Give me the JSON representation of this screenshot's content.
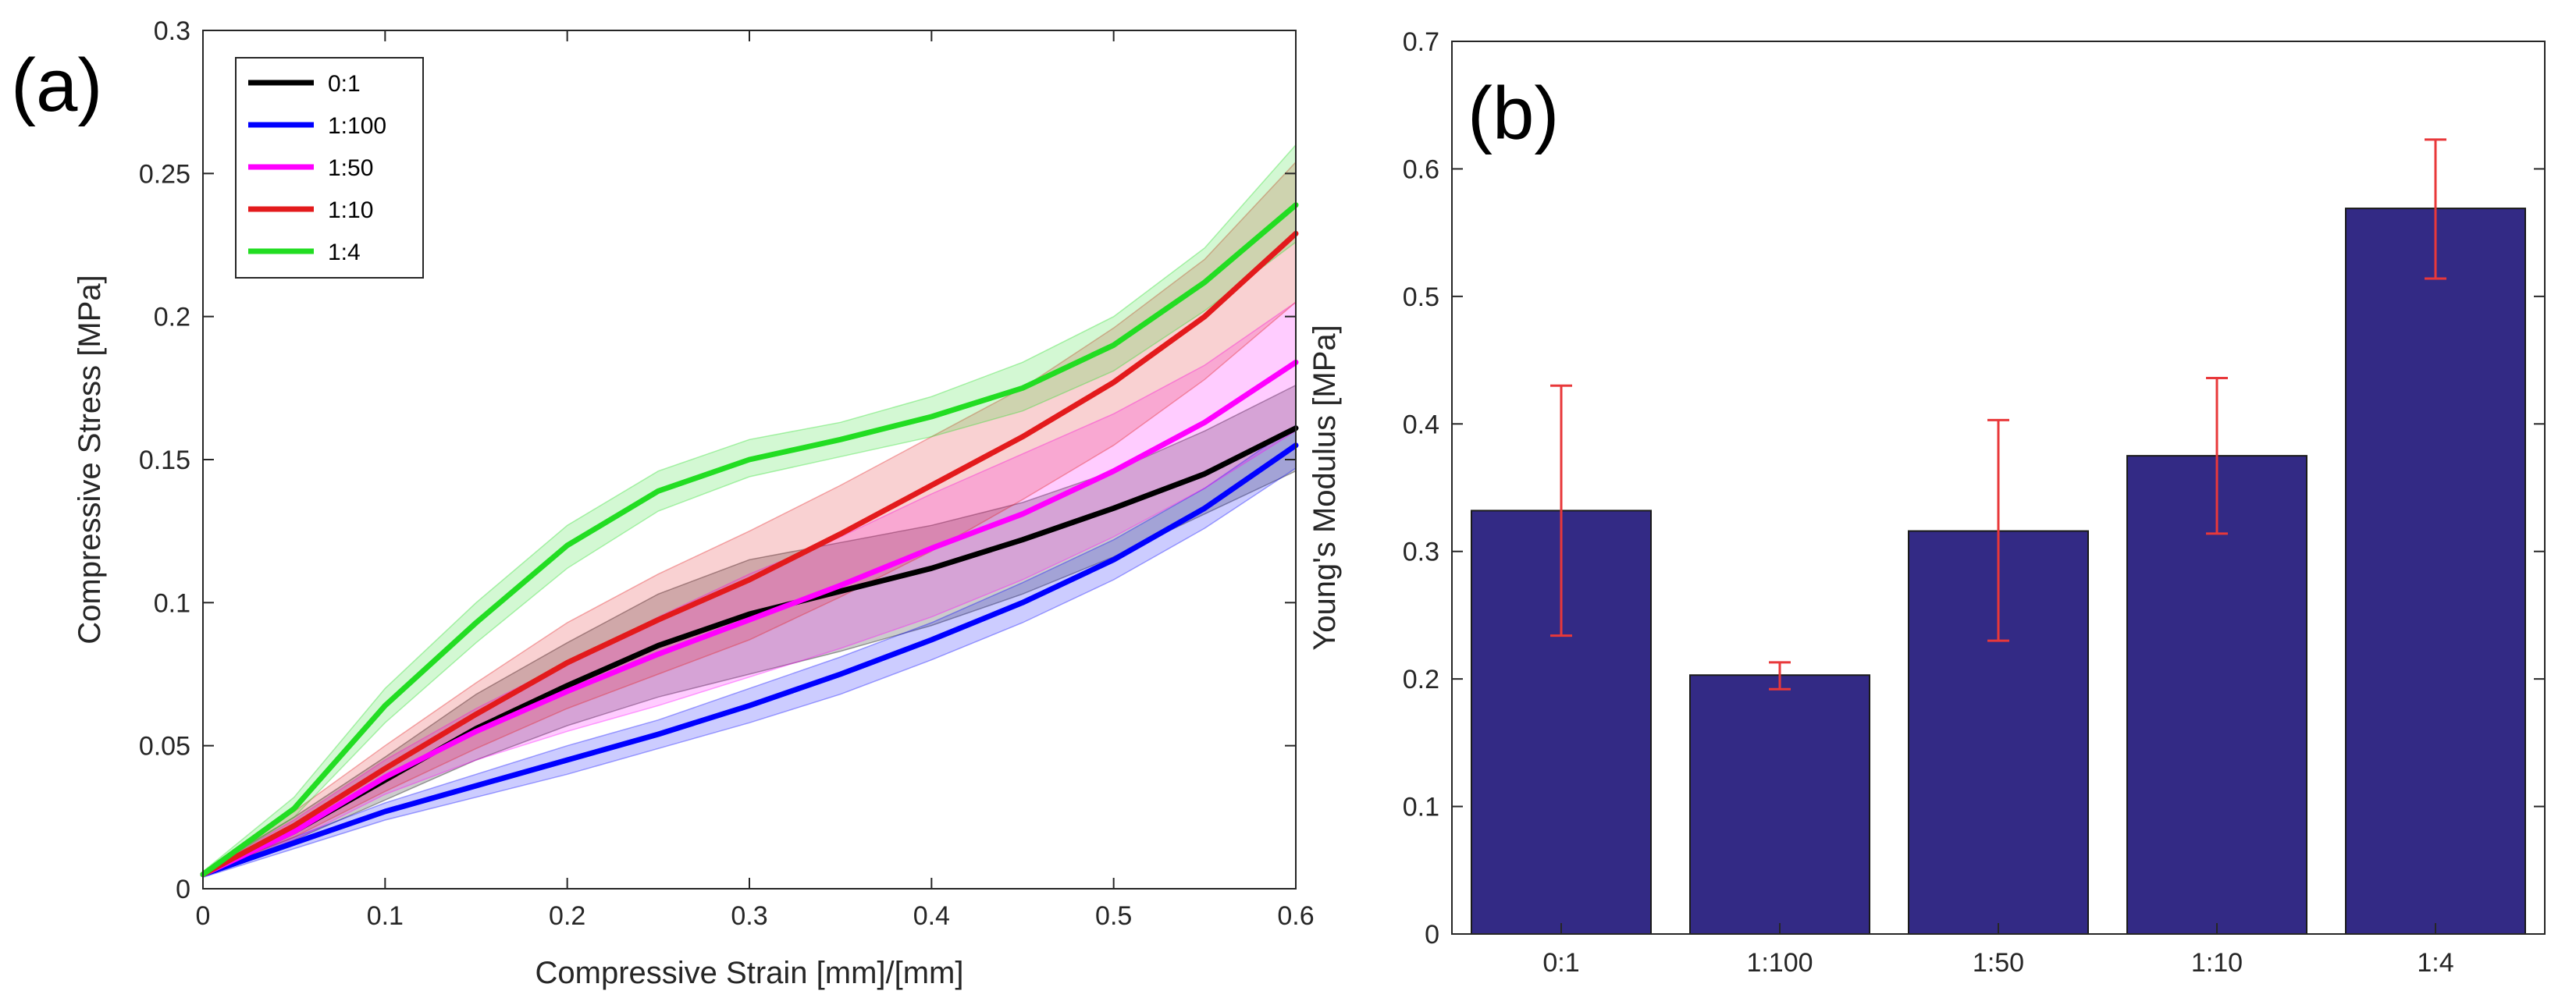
{
  "figure": {
    "panel_a": "(a)",
    "panel_b": "(b)"
  },
  "chart_data": [
    {
      "type": "line",
      "panel": "(a)",
      "title": "",
      "xlabel": "Compressive Strain [mm]/[mm]",
      "ylabel": "Compressive  Stress [MPa]",
      "xlim": [
        0,
        0.6
      ],
      "ylim": [
        0,
        0.3
      ],
      "xticks": [
        "0",
        "0.1",
        "0.2",
        "0.3",
        "0.4",
        "0.5",
        "0.6"
      ],
      "yticks": [
        "0",
        "0.05",
        "0.1",
        "0.15",
        "0.2",
        "0.25",
        "0.3"
      ],
      "legend_position": "top-left",
      "grid": false,
      "x": [
        0,
        0.05,
        0.1,
        0.15,
        0.2,
        0.25,
        0.3,
        0.35,
        0.4,
        0.45,
        0.5,
        0.55,
        0.6
      ],
      "series": [
        {
          "name": "0:1",
          "color": "#000000",
          "values": [
            0.005,
            0.02,
            0.038,
            0.056,
            0.071,
            0.085,
            0.096,
            0.104,
            0.112,
            0.122,
            0.133,
            0.145,
            0.161
          ],
          "band_lower": [
            0.005,
            0.017,
            0.031,
            0.045,
            0.057,
            0.067,
            0.075,
            0.083,
            0.092,
            0.103,
            0.116,
            0.131,
            0.146
          ],
          "band_upper": [
            0.006,
            0.025,
            0.046,
            0.068,
            0.086,
            0.103,
            0.115,
            0.121,
            0.127,
            0.135,
            0.146,
            0.16,
            0.176
          ]
        },
        {
          "name": "1:100",
          "color": "#0000ff",
          "values": [
            0.005,
            0.016,
            0.027,
            0.036,
            0.045,
            0.054,
            0.064,
            0.075,
            0.087,
            0.1,
            0.115,
            0.133,
            0.155
          ],
          "band_lower": [
            0.004,
            0.014,
            0.024,
            0.032,
            0.04,
            0.049,
            0.058,
            0.068,
            0.08,
            0.093,
            0.108,
            0.126,
            0.147
          ],
          "band_upper": [
            0.006,
            0.018,
            0.03,
            0.04,
            0.05,
            0.059,
            0.07,
            0.081,
            0.093,
            0.107,
            0.122,
            0.14,
            0.162
          ]
        },
        {
          "name": "1:50",
          "color": "#ff00ff",
          "values": [
            0.005,
            0.02,
            0.039,
            0.055,
            0.069,
            0.082,
            0.094,
            0.106,
            0.119,
            0.131,
            0.146,
            0.163,
            0.184
          ],
          "band_lower": [
            0.005,
            0.017,
            0.033,
            0.045,
            0.055,
            0.064,
            0.074,
            0.084,
            0.095,
            0.108,
            0.123,
            0.14,
            0.16
          ],
          "band_upper": [
            0.006,
            0.024,
            0.045,
            0.063,
            0.079,
            0.095,
            0.11,
            0.123,
            0.138,
            0.152,
            0.166,
            0.183,
            0.205
          ]
        },
        {
          "name": "1:10",
          "color": "#e31a1c",
          "values": [
            0.005,
            0.022,
            0.042,
            0.061,
            0.079,
            0.094,
            0.108,
            0.124,
            0.141,
            0.158,
            0.177,
            0.2,
            0.229
          ],
          "band_lower": [
            0.005,
            0.018,
            0.034,
            0.049,
            0.063,
            0.075,
            0.087,
            0.102,
            0.118,
            0.136,
            0.155,
            0.178,
            0.205
          ],
          "band_upper": [
            0.006,
            0.027,
            0.05,
            0.072,
            0.093,
            0.11,
            0.125,
            0.141,
            0.158,
            0.175,
            0.196,
            0.22,
            0.254
          ]
        },
        {
          "name": "1:4",
          "color": "#22dd22",
          "values": [
            0.005,
            0.028,
            0.064,
            0.093,
            0.12,
            0.139,
            0.15,
            0.157,
            0.165,
            0.175,
            0.19,
            0.212,
            0.239
          ],
          "band_lower": [
            0.005,
            0.025,
            0.058,
            0.086,
            0.112,
            0.132,
            0.144,
            0.151,
            0.158,
            0.167,
            0.181,
            0.202,
            0.226
          ],
          "band_upper": [
            0.006,
            0.032,
            0.07,
            0.1,
            0.127,
            0.146,
            0.157,
            0.163,
            0.172,
            0.184,
            0.2,
            0.224,
            0.26
          ]
        }
      ]
    },
    {
      "type": "bar",
      "panel": "(b)",
      "title": "",
      "xlabel": "",
      "ylabel": "Young's Modulus [MPa]",
      "ylim": [
        0,
        0.7
      ],
      "yticks": [
        "0",
        "0.1",
        "0.2",
        "0.3",
        "0.4",
        "0.5",
        "0.6",
        "0.7"
      ],
      "categories": [
        "0:1",
        "1:100",
        "1:50",
        "1:10",
        "1:4"
      ],
      "values": [
        0.332,
        0.203,
        0.316,
        0.375,
        0.569
      ],
      "error_lower": [
        0.234,
        0.192,
        0.23,
        0.314,
        0.514
      ],
      "error_upper": [
        0.43,
        0.213,
        0.403,
        0.436,
        0.623
      ],
      "bar_color": "#332a85",
      "error_color": "#e8383a",
      "grid": false
    }
  ]
}
